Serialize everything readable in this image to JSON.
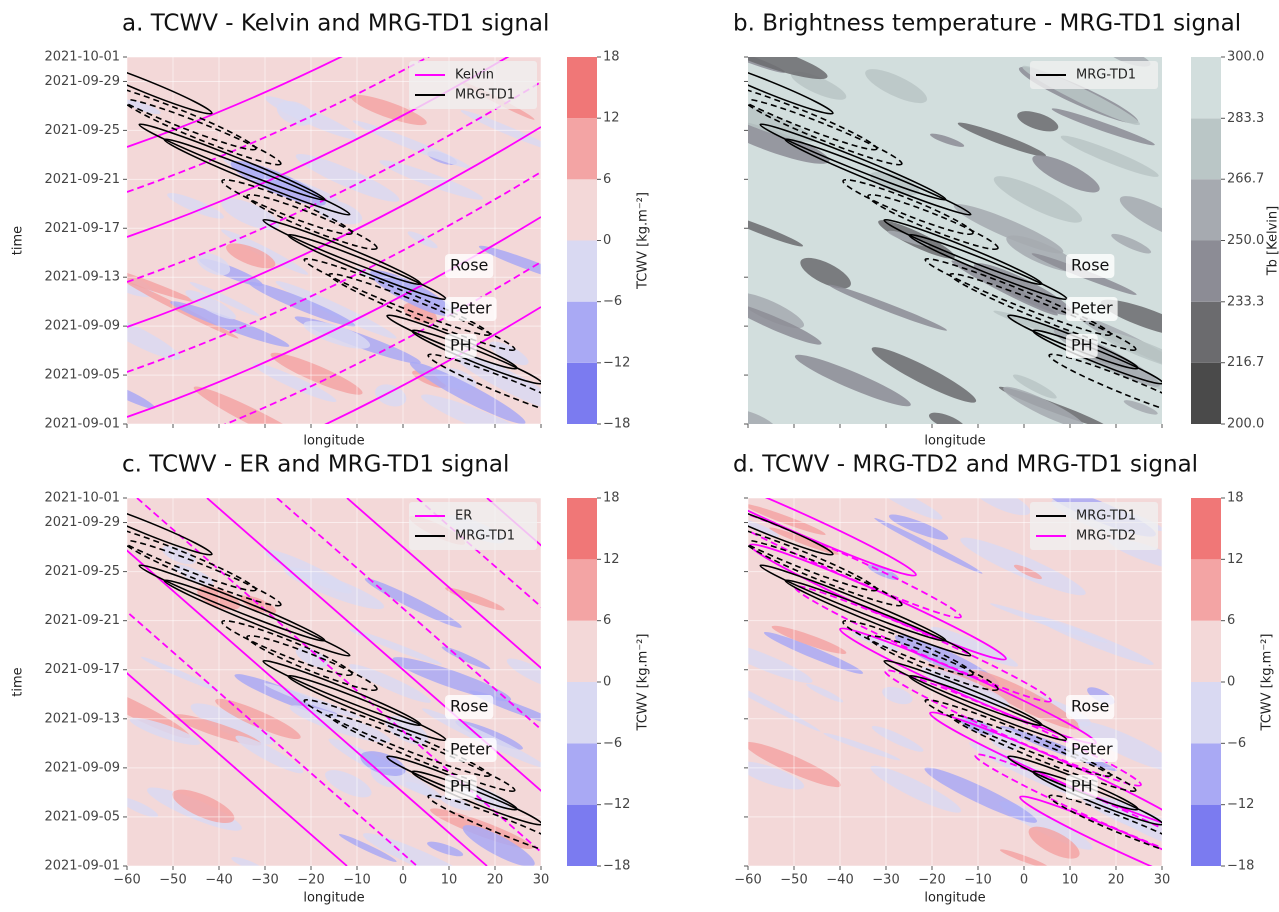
{
  "chart_data": [
    {
      "type": "contour",
      "title": "a. TCWV - Kelvin and MRG-TD1 signal",
      "xlabel": "longitude",
      "ylabel": "time",
      "xlim": [
        -60,
        30
      ],
      "xticks": [
        -60,
        -50,
        -40,
        -30,
        -20,
        -10,
        0,
        10,
        20,
        30
      ],
      "xtick_labels": false,
      "ylim": [
        "2021-09-01",
        "2021-10-01"
      ],
      "yticks": [
        "2021-09-01",
        "2021-09-05",
        "2021-09-09",
        "2021-09-13",
        "2021-09-17",
        "2021-09-21",
        "2021-09-25",
        "2021-09-29",
        "2021-10-01"
      ],
      "ytick_labels": true,
      "grid": true,
      "legend": "upper right",
      "series": [
        {
          "name": "Kelvin",
          "color": "#ff00ff"
        },
        {
          "name": "MRG-TD1",
          "color": "#000000"
        }
      ],
      "annotations": [
        "Rose",
        "Peter",
        "PH"
      ],
      "colorbar": {
        "label": "TCWV [kg.m⁻²]",
        "colors": [
          "#7b7bf0",
          "#a9a9f4",
          "#d9d9f2",
          "#f3d8d8",
          "#f3a4a4",
          "#f07777"
        ],
        "ticks": [
          {
            "value": -18,
            "label": "−18"
          },
          {
            "value": -12,
            "label": "−12"
          },
          {
            "value": -6,
            "label": "−6"
          },
          0,
          6,
          12,
          18
        ]
      }
    },
    {
      "type": "contour",
      "title": "b. Brightness temperature - MRG-TD1 signal",
      "xlabel": "longitude",
      "xlim": [
        -60,
        30
      ],
      "xticks": [
        -60,
        -50,
        -40,
        -30,
        -20,
        -10,
        0,
        10,
        20,
        30
      ],
      "xtick_labels": false,
      "ylim": [
        "2021-09-01",
        "2021-10-01"
      ],
      "yticks": [
        "2021-09-01",
        "2021-09-05",
        "2021-09-09",
        "2021-09-13",
        "2021-09-17",
        "2021-09-21",
        "2021-09-25",
        "2021-09-29",
        "2021-10-01"
      ],
      "ytick_labels": false,
      "grid": false,
      "legend": "upper right",
      "series": [
        {
          "name": "MRG-TD1",
          "color": "#000000"
        }
      ],
      "annotations": [
        "Rose",
        "Peter",
        "PH"
      ],
      "colorbar": {
        "label": "Tb [Kelvin]",
        "colors": [
          "#4a4a4a",
          "#6b6b6e",
          "#8c8c95",
          "#a6aab0",
          "#bac6c6",
          "#d2dedd"
        ],
        "ticks": [
          {
            "value": 200,
            "label": "200.0"
          },
          {
            "value": 216.7,
            "label": "216.7"
          },
          {
            "value": 233.3,
            "label": "233.3"
          },
          {
            "value": 250,
            "label": "250.0"
          },
          {
            "value": 266.7,
            "label": "266.7"
          },
          {
            "value": 283.3,
            "label": "283.3"
          },
          {
            "value": 300,
            "label": "300.0"
          }
        ]
      }
    },
    {
      "type": "contour",
      "title": "c. TCWV - ER and MRG-TD1 signal",
      "xlabel": "longitude",
      "ylabel": "time",
      "xlim": [
        -60,
        30
      ],
      "xticks": [
        {
          "value": -60,
          "label": "−60"
        },
        {
          "value": -50,
          "label": "−50"
        },
        {
          "value": -40,
          "label": "−40"
        },
        {
          "value": -30,
          "label": "−30"
        },
        {
          "value": -20,
          "label": "−20"
        },
        {
          "value": -10,
          "label": "−10"
        },
        0,
        10,
        20,
        30
      ],
      "xtick_labels": true,
      "ylim": [
        "2021-09-01",
        "2021-10-01"
      ],
      "yticks": [
        "2021-09-01",
        "2021-09-05",
        "2021-09-09",
        "2021-09-13",
        "2021-09-17",
        "2021-09-21",
        "2021-09-25",
        "2021-09-29",
        "2021-10-01"
      ],
      "ytick_labels": true,
      "grid": true,
      "legend": "upper right",
      "series": [
        {
          "name": "ER",
          "color": "#ff00ff"
        },
        {
          "name": "MRG-TD1",
          "color": "#000000"
        }
      ],
      "annotations": [
        "Rose",
        "Peter",
        "PH"
      ],
      "colorbar": {
        "label": "TCWV [kg.m⁻²]",
        "colors": [
          "#7b7bf0",
          "#a9a9f4",
          "#d9d9f2",
          "#f3d8d8",
          "#f3a4a4",
          "#f07777"
        ],
        "ticks": [
          {
            "value": -18,
            "label": "−18"
          },
          {
            "value": -12,
            "label": "−12"
          },
          {
            "value": -6,
            "label": "−6"
          },
          0,
          6,
          12,
          18
        ]
      }
    },
    {
      "type": "contour",
      "title": "d. TCWV - MRG-TD2 and MRG-TD1 signal",
      "xlabel": "longitude",
      "xlim": [
        -60,
        30
      ],
      "xticks": [
        {
          "value": -60,
          "label": "−60"
        },
        {
          "value": -50,
          "label": "−50"
        },
        {
          "value": -40,
          "label": "−40"
        },
        {
          "value": -30,
          "label": "−30"
        },
        {
          "value": -20,
          "label": "−20"
        },
        {
          "value": -10,
          "label": "−10"
        },
        0,
        10,
        20,
        30
      ],
      "xtick_labels": true,
      "ylim": [
        "2021-09-01",
        "2021-10-01"
      ],
      "yticks": [
        "2021-09-01",
        "2021-09-05",
        "2021-09-09",
        "2021-09-13",
        "2021-09-17",
        "2021-09-21",
        "2021-09-25",
        "2021-09-29",
        "2021-10-01"
      ],
      "ytick_labels": false,
      "grid": true,
      "legend": "upper right",
      "series": [
        {
          "name": "MRG-TD1",
          "color": "#000000"
        },
        {
          "name": "MRG-TD2",
          "color": "#ff00ff"
        }
      ],
      "annotations": [
        "Rose",
        "Peter",
        "PH"
      ],
      "colorbar": {
        "label": "TCWV [kg.m⁻²]",
        "colors": [
          "#7b7bf0",
          "#a9a9f4",
          "#d9d9f2",
          "#f3d8d8",
          "#f3a4a4",
          "#f07777"
        ],
        "ticks": [
          {
            "value": -18,
            "label": "−18"
          },
          {
            "value": -12,
            "label": "−12"
          },
          {
            "value": -6,
            "label": "−6"
          },
          0,
          6,
          12,
          18
        ]
      }
    }
  ]
}
